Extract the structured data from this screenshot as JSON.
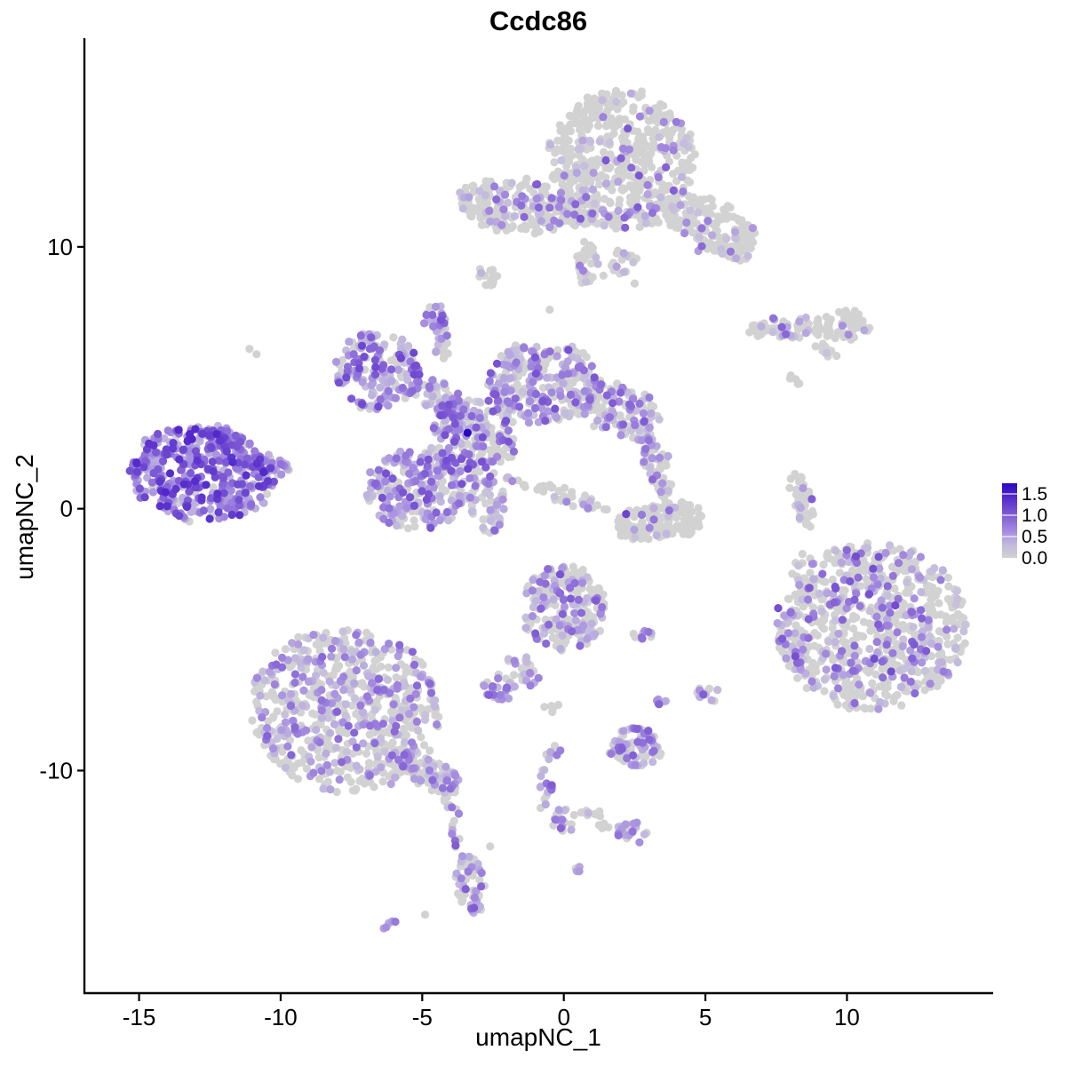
{
  "chart_data": {
    "type": "scatter",
    "title": "Ccdc86",
    "xlabel": "umapNC_1",
    "ylabel": "umapNC_2",
    "xlim": [
      -16.9,
      15.1
    ],
    "ylim": [
      -18.5,
      17.9
    ],
    "x_ticks": [
      -15,
      -10,
      -5,
      0,
      5,
      10
    ],
    "y_ticks": [
      -10,
      0,
      10
    ],
    "grid": false,
    "background": "#ffffff",
    "point_color_zero": "#d2d2d2",
    "legend": {
      "position": "right",
      "vmax": 1.75,
      "values": [
        1.5,
        1.0,
        0.5,
        0.0
      ],
      "labels": [
        "1.5",
        "1.0",
        "0.5",
        "0.0"
      ]
    },
    "color_ramp": [
      [
        0.0,
        "#d2d2d2"
      ],
      [
        0.3,
        "#c3bade"
      ],
      [
        0.6,
        "#a78fe0"
      ],
      [
        0.9,
        "#8a69d8"
      ],
      [
        1.2,
        "#6c45d0"
      ],
      [
        1.5,
        "#4a1fca"
      ],
      [
        1.75,
        "#2a07c2"
      ]
    ],
    "clusters": [
      {
        "name": "left-dense-main",
        "n": 420,
        "x": -12.8,
        "y": 1.3,
        "rx": 2.6,
        "ry": 1.8,
        "rot": -8,
        "expr_frac": 0.9,
        "expr_min": 0.35,
        "expr_max": 1.45
      },
      {
        "name": "left-dense-arm-ne",
        "n": 40,
        "x": -11.9,
        "y": 2.6,
        "rx": 0.8,
        "ry": 0.45,
        "rot": -30,
        "expr_frac": 0.85,
        "expr_min": 0.3,
        "expr_max": 1.2
      },
      {
        "name": "left-dense-arm-e",
        "n": 40,
        "x": -10.6,
        "y": 1.7,
        "rx": 0.95,
        "ry": 0.35,
        "rot": -15,
        "expr_frac": 0.85,
        "expr_min": 0.3,
        "expr_max": 1.2
      },
      {
        "name": "center-nw-blob",
        "n": 170,
        "x": -6.6,
        "y": 5.3,
        "rx": 1.5,
        "ry": 1.5,
        "rot": 0,
        "expr_frac": 0.75,
        "expr_min": 0.25,
        "expr_max": 1.2
      },
      {
        "name": "center-ridge",
        "n": 80,
        "x": -4.3,
        "y": 4.2,
        "rx": 1.3,
        "ry": 0.55,
        "rot": -30,
        "expr_frac": 0.6,
        "expr_min": 0.25,
        "expr_max": 1.1
      },
      {
        "name": "center-ne-blob",
        "n": 270,
        "x": -0.7,
        "y": 4.8,
        "rx": 2.0,
        "ry": 1.6,
        "rot": 0,
        "expr_frac": 0.55,
        "expr_min": 0.2,
        "expr_max": 1.1
      },
      {
        "name": "center-e-arm",
        "n": 120,
        "x": 1.9,
        "y": 3.8,
        "rx": 1.5,
        "ry": 0.95,
        "rot": -15,
        "expr_frac": 0.45,
        "expr_min": 0.2,
        "expr_max": 1.0
      },
      {
        "name": "center-node",
        "n": 210,
        "x": -3.2,
        "y": 2.7,
        "rx": 1.5,
        "ry": 1.5,
        "rot": 0,
        "expr_frac": 0.55,
        "expr_min": 0.2,
        "expr_max": 1.2
      },
      {
        "name": "center-sw-blob",
        "n": 230,
        "x": -5.2,
        "y": 0.7,
        "rx": 1.75,
        "ry": 1.5,
        "rot": 0,
        "expr_frac": 0.6,
        "expr_min": 0.25,
        "expr_max": 1.1
      },
      {
        "name": "center-s-tail",
        "n": 60,
        "x": -2.7,
        "y": 0.2,
        "rx": 0.7,
        "ry": 1.1,
        "rot": 10,
        "expr_frac": 0.5,
        "expr_min": 0.2,
        "expr_max": 1.0
      },
      {
        "name": "center-se-streak",
        "n": 45,
        "x": -0.3,
        "y": 0.6,
        "rx": 1.9,
        "ry": 0.22,
        "rot": -18,
        "expr_frac": 0.25,
        "expr_min": 0.2,
        "expr_max": 0.8
      },
      {
        "name": "top-main",
        "n": 540,
        "x": 2.0,
        "y": 13.3,
        "rx": 2.6,
        "ry": 2.7,
        "rot": 0,
        "expr_frac": 0.16,
        "expr_min": 0.2,
        "expr_max": 1.05
      },
      {
        "name": "top-right-wing",
        "n": 150,
        "x": 5.2,
        "y": 10.8,
        "rx": 1.6,
        "ry": 1.0,
        "rot": -25,
        "expr_frac": 0.12,
        "expr_min": 0.2,
        "expr_max": 0.9
      },
      {
        "name": "top-left-arm",
        "n": 210,
        "x": -1.8,
        "y": 11.6,
        "rx": 2.0,
        "ry": 1.05,
        "rot": -8,
        "expr_frac": 0.22,
        "expr_min": 0.25,
        "expr_max": 1.0
      },
      {
        "name": "top-neck",
        "n": 50,
        "x": 0.6,
        "y": 11.3,
        "rx": 0.9,
        "ry": 0.5,
        "rot": 0,
        "expr_frac": 0.15,
        "expr_min": 0.2,
        "expr_max": 0.8
      },
      {
        "name": "top-lower-chain",
        "n": 30,
        "x": 0.8,
        "y": 9.4,
        "rx": 0.45,
        "ry": 0.85,
        "rot": 0,
        "expr_frac": 0.2,
        "expr_min": 0.2,
        "expr_max": 0.8
      },
      {
        "name": "top-lower-dots",
        "n": 18,
        "x": 2.1,
        "y": 9.4,
        "rx": 0.5,
        "ry": 0.5,
        "rot": 0,
        "expr_frac": 0.1,
        "expr_min": 0.2,
        "expr_max": 0.6
      },
      {
        "name": "top-right-tip",
        "n": 25,
        "x": 6.1,
        "y": 9.9,
        "rx": 0.6,
        "ry": 0.4,
        "rot": -20,
        "expr_frac": 0.12,
        "expr_min": 0.2,
        "expr_max": 0.8
      },
      {
        "name": "small-purple-blob",
        "n": 28,
        "x": -4.5,
        "y": 7.3,
        "rx": 0.42,
        "ry": 0.48,
        "rot": 0,
        "expr_frac": 0.7,
        "expr_min": 0.3,
        "expr_max": 1.1
      },
      {
        "name": "small-blob-stem",
        "n": 20,
        "x": -4.3,
        "y": 6.4,
        "rx": 0.25,
        "ry": 0.7,
        "rot": 0,
        "expr_frac": 0.4,
        "expr_min": 0.2,
        "expr_max": 0.8
      },
      {
        "name": "tiny-grey-blob",
        "n": 14,
        "x": -2.7,
        "y": 8.85,
        "rx": 0.32,
        "ry": 0.42,
        "rot": 0,
        "expr_frac": 0.12,
        "expr_min": 0.3,
        "expr_max": 0.9
      },
      {
        "name": "topright-strip",
        "n": 60,
        "x": 7.9,
        "y": 6.9,
        "rx": 1.45,
        "ry": 0.36,
        "rot": 4,
        "expr_frac": 0.25,
        "expr_min": 0.25,
        "expr_max": 1.0
      },
      {
        "name": "topright-blob",
        "n": 55,
        "x": 9.85,
        "y": 7.0,
        "rx": 0.95,
        "ry": 0.6,
        "rot": 0,
        "expr_frac": 0.1,
        "expr_min": 0.3,
        "expr_max": 1.0
      },
      {
        "name": "topright-diag",
        "n": 14,
        "x": 9.25,
        "y": 6.05,
        "rx": 0.5,
        "ry": 0.2,
        "rot": -35,
        "expr_frac": 0.08,
        "expr_min": 0.2,
        "expr_max": 0.6
      },
      {
        "name": "topright-tiny-dots",
        "n": 5,
        "x": 8.1,
        "y": 4.8,
        "rx": 0.28,
        "ry": 0.28,
        "rot": 0,
        "expr_frac": 0.0,
        "expr_min": 0.0,
        "expr_max": 0.0
      },
      {
        "name": "right-thin-strip",
        "n": 45,
        "x": 8.45,
        "y": 0.3,
        "rx": 0.3,
        "ry": 1.25,
        "rot": 14,
        "expr_frac": 0.12,
        "expr_min": 0.3,
        "expr_max": 1.0
      },
      {
        "name": "comma-arc",
        "n": 175,
        "x": 3.4,
        "y": -0.5,
        "rx": 1.55,
        "ry": 0.7,
        "rot": 8,
        "expr_frac": 0.06,
        "expr_min": 0.2,
        "expr_max": 0.9
      },
      {
        "name": "comma-stem",
        "n": 60,
        "x": 3.3,
        "y": 1.5,
        "rx": 0.5,
        "ry": 1.15,
        "rot": 14,
        "expr_frac": 0.3,
        "expr_min": 0.25,
        "expr_max": 1.0
      },
      {
        "name": "comma-top-dots",
        "n": 12,
        "x": 2.9,
        "y": 2.7,
        "rx": 0.4,
        "ry": 0.5,
        "rot": 0,
        "expr_frac": 0.15,
        "expr_min": 0.3,
        "expr_max": 0.8
      },
      {
        "name": "right-big-round",
        "n": 760,
        "x": 10.9,
        "y": -4.5,
        "rx": 3.3,
        "ry": 3.2,
        "rot": 0,
        "expr_frac": 0.32,
        "expr_min": 0.2,
        "expr_max": 1.15
      },
      {
        "name": "right-big-left-tip",
        "n": 40,
        "x": 8.1,
        "y": -5.3,
        "rx": 0.5,
        "ry": 1.0,
        "rot": 10,
        "expr_frac": 0.3,
        "expr_min": 0.2,
        "expr_max": 0.9
      },
      {
        "name": "right-big-nw-dots",
        "n": 12,
        "x": 8.5,
        "y": -2.5,
        "rx": 0.45,
        "ry": 0.95,
        "rot": 0,
        "expr_frac": 0.1,
        "expr_min": 0.2,
        "expr_max": 0.6
      },
      {
        "name": "bottomleft-main",
        "n": 680,
        "x": -7.7,
        "y": -7.7,
        "rx": 3.4,
        "ry": 3.1,
        "rot": -10,
        "expr_frac": 0.38,
        "expr_min": 0.2,
        "expr_max": 0.95
      },
      {
        "name": "bottomleft-tail",
        "n": 90,
        "x": -4.8,
        "y": -10.1,
        "rx": 1.3,
        "ry": 0.55,
        "rot": -28,
        "expr_frac": 0.3,
        "expr_min": 0.2,
        "expr_max": 0.9
      },
      {
        "name": "bottomleft-tip-dots",
        "n": 8,
        "x": -4.2,
        "y": -11.1,
        "rx": 0.3,
        "ry": 0.3,
        "rot": 0,
        "expr_frac": 0.2,
        "expr_min": 0.2,
        "expr_max": 0.6
      },
      {
        "name": "midbottom-jellyfish",
        "n": 230,
        "x": 0.0,
        "y": -3.8,
        "rx": 1.5,
        "ry": 1.6,
        "rot": 0,
        "expr_frac": 0.3,
        "expr_min": 0.25,
        "expr_max": 1.1
      },
      {
        "name": "jellyfish-tail",
        "n": 25,
        "x": -1.4,
        "y": -6.2,
        "rx": 0.4,
        "ry": 0.9,
        "rot": 35,
        "expr_frac": 0.35,
        "expr_min": 0.2,
        "expr_max": 0.9
      },
      {
        "name": "small-left-clump",
        "n": 30,
        "x": -2.3,
        "y": -6.8,
        "rx": 0.55,
        "ry": 0.5,
        "rot": 0,
        "expr_frac": 0.6,
        "expr_min": 0.3,
        "expr_max": 1.0
      },
      {
        "name": "grey-pair-below",
        "n": 6,
        "x": -0.4,
        "y": -7.5,
        "rx": 0.3,
        "ry": 0.18,
        "rot": 0,
        "expr_frac": 0.1,
        "expr_min": 0.2,
        "expr_max": 0.5
      },
      {
        "name": "mid-strip",
        "n": 12,
        "x": 2.9,
        "y": -4.8,
        "rx": 0.5,
        "ry": 0.18,
        "rot": 5,
        "expr_frac": 0.5,
        "expr_min": 0.3,
        "expr_max": 1.0
      },
      {
        "name": "purple-pair",
        "n": 6,
        "x": 3.35,
        "y": -7.35,
        "rx": 0.22,
        "ry": 0.18,
        "rot": 0,
        "expr_frac": 0.85,
        "expr_min": 0.4,
        "expr_max": 1.0
      },
      {
        "name": "small-right-clump",
        "n": 14,
        "x": 5.1,
        "y": -7.15,
        "rx": 0.4,
        "ry": 0.33,
        "rot": 0,
        "expr_frac": 0.5,
        "expr_min": 0.3,
        "expr_max": 1.0
      },
      {
        "name": "bottomcenter-cluster",
        "n": 85,
        "x": 2.5,
        "y": -9.1,
        "rx": 0.9,
        "ry": 0.75,
        "rot": 0,
        "expr_frac": 0.45,
        "expr_min": 0.25,
        "expr_max": 1.0
      },
      {
        "name": "chain-diagonal",
        "n": 22,
        "x": -0.55,
        "y": -10.3,
        "rx": 0.3,
        "ry": 1.4,
        "rot": -12,
        "expr_frac": 0.5,
        "expr_min": 0.3,
        "expr_max": 1.0
      },
      {
        "name": "chain-clump",
        "n": 18,
        "x": 0.0,
        "y": -11.9,
        "rx": 0.4,
        "ry": 0.4,
        "rot": 0,
        "expr_frac": 0.6,
        "expr_min": 0.3,
        "expr_max": 1.0
      },
      {
        "name": "chain-arm-grey",
        "n": 10,
        "x": 0.9,
        "y": -11.6,
        "rx": 0.5,
        "ry": 0.16,
        "rot": 0,
        "expr_frac": 0.1,
        "expr_min": 0.2,
        "expr_max": 0.5
      },
      {
        "name": "chain-end-clump",
        "n": 26,
        "x": 2.4,
        "y": -12.4,
        "rx": 0.6,
        "ry": 0.42,
        "rot": -20,
        "expr_frac": 0.5,
        "expr_min": 0.3,
        "expr_max": 1.0
      },
      {
        "name": "chain-connector",
        "n": 6,
        "x": 1.5,
        "y": -12.1,
        "rx": 0.35,
        "ry": 0.15,
        "rot": -10,
        "expr_frac": 0.1,
        "expr_min": 0.2,
        "expr_max": 0.4
      },
      {
        "name": "vchain-dots",
        "n": 12,
        "x": -3.85,
        "y": -12.0,
        "rx": 0.2,
        "ry": 0.95,
        "rot": 5,
        "expr_frac": 0.5,
        "expr_min": 0.3,
        "expr_max": 1.0
      },
      {
        "name": "bottom-elongated",
        "n": 55,
        "x": -3.3,
        "y": -14.3,
        "rx": 0.5,
        "ry": 1.15,
        "rot": 8,
        "expr_frac": 0.55,
        "expr_min": 0.3,
        "expr_max": 1.1
      },
      {
        "name": "bottom-tiny-pair",
        "n": 5,
        "x": -6.1,
        "y": -15.9,
        "rx": 0.28,
        "ry": 0.16,
        "rot": 30,
        "expr_frac": 0.7,
        "expr_min": 0.4,
        "expr_max": 0.9
      },
      {
        "name": "purple-dot-pair",
        "n": 4,
        "x": 0.55,
        "y": -13.8,
        "rx": 0.15,
        "ry": 0.15,
        "rot": 0,
        "expr_frac": 0.9,
        "expr_min": 0.4,
        "expr_max": 1.0
      }
    ],
    "extra_points": [
      {
        "x": -11.1,
        "y": 6.1,
        "v": 0
      },
      {
        "x": -10.85,
        "y": 5.9,
        "v": 0
      },
      {
        "x": -0.5,
        "y": 7.6,
        "v": 0
      },
      {
        "x": 2.5,
        "y": 8.6,
        "v": 0
      },
      {
        "x": 1.4,
        "y": 8.9,
        "v": 0
      },
      {
        "x": 8.7,
        "y": -1.9,
        "v": 0
      },
      {
        "x": 9.0,
        "y": -2.7,
        "v": 0
      },
      {
        "x": 9.5,
        "y": -3.5,
        "v": 0
      },
      {
        "x": -4.9,
        "y": -15.5,
        "v": 0
      },
      {
        "x": -2.6,
        "y": -12.9,
        "v": 0
      },
      {
        "x": 2.2,
        "y": -0.2,
        "v": 1.2
      },
      {
        "x": -3.4,
        "y": 2.9,
        "v": 1.75
      }
    ]
  }
}
